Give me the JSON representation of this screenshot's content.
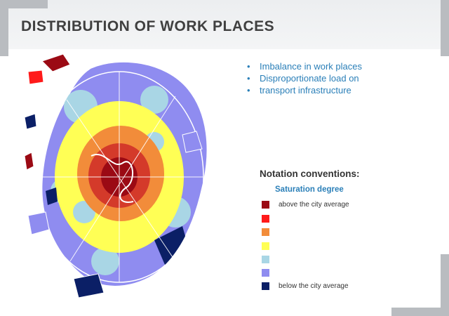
{
  "title": "DISTRIBUTION OF WORK PLACES",
  "bullets": [
    "Imbalance in work places",
    "Disproportionate load on",
    "transport infrastructure"
  ],
  "legend": {
    "title": "Notation conventions:",
    "subtitle": "Saturation degree",
    "items": [
      {
        "color": "#9b0a14",
        "label": "above the city average"
      },
      {
        "color": "#ff1a1a",
        "label": ""
      },
      {
        "color": "#f28c3a",
        "label": ""
      },
      {
        "color": "#ffff55",
        "label": ""
      },
      {
        "color": "#a9d6e5",
        "label": ""
      },
      {
        "color": "#8f8cf0",
        "label": ""
      },
      {
        "color": "#0b1f66",
        "label": "below the city average"
      }
    ]
  }
}
